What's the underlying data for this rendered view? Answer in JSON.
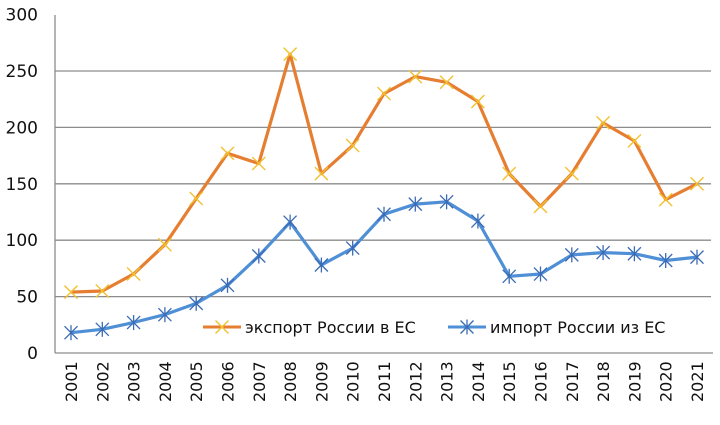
{
  "chart_data": {
    "type": "line",
    "title": "",
    "xlabel": "",
    "ylabel": "",
    "ylim": [
      0,
      300
    ],
    "yticks": [
      0,
      50,
      100,
      150,
      200,
      250,
      300
    ],
    "grid": true,
    "legend_position": "inside-bottom",
    "categories": [
      "2001",
      "2002",
      "2003",
      "2004",
      "2005",
      "2006",
      "2007",
      "2008",
      "2009",
      "2010",
      "2011",
      "2012",
      "2013",
      "2014",
      "2015",
      "2016",
      "2017",
      "2018",
      "2019",
      "2020",
      "2021"
    ],
    "series": [
      {
        "name": "экспорт России в ЕС",
        "color": "#E67E32",
        "marker": "x",
        "marker_color": "#F2C12E",
        "values": [
          54,
          55,
          70,
          96,
          137,
          177,
          168,
          265,
          159,
          184,
          230,
          245,
          240,
          223,
          159,
          130,
          159,
          204,
          188,
          136,
          150
        ]
      },
      {
        "name": "импорт России из ЕС",
        "color": "#4F8FD6",
        "marker": "star",
        "marker_color": "#3A6BB5",
        "values": [
          18,
          21,
          27,
          34,
          44,
          60,
          86,
          116,
          78,
          93,
          123,
          132,
          134,
          117,
          68,
          70,
          87,
          89,
          88,
          82,
          85
        ]
      }
    ]
  },
  "legend": {
    "items": [
      {
        "label": "экспорт России в ЕС"
      },
      {
        "label": "импорт России из ЕС"
      }
    ]
  }
}
